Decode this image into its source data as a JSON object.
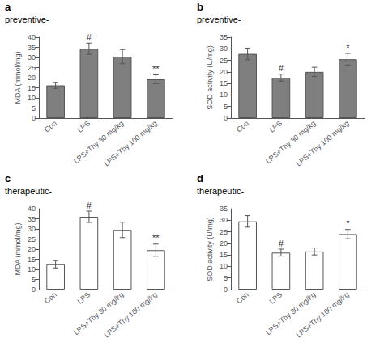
{
  "chart_data": [
    {
      "type": "bar",
      "title": "a",
      "subtitle": "preventive-",
      "ylabel": "MDA (mmol/mg)",
      "categories": [
        "Con",
        "LPS",
        "LPS+Thy 30 mg/kg",
        "LPS+Thy 100 mg/kg"
      ],
      "values": [
        16.2,
        34.3,
        30.4,
        19.2
      ],
      "errors": [
        1.5,
        2.8,
        3.5,
        2.2
      ],
      "annotations": [
        null,
        "#",
        null,
        "**"
      ],
      "color": "#7f7f7f",
      "ylim": [
        0,
        40
      ],
      "yticks": [
        0,
        5,
        10,
        15,
        20,
        25,
        30,
        35,
        40
      ],
      "grid": false
    },
    {
      "type": "bar",
      "title": "b",
      "subtitle": "preventive-",
      "ylabel": "SOD activity (U/mg)",
      "categories": [
        "Con",
        "LPS",
        "LPS+Thy 30 mg/kg",
        "LPS+Thy 100 mg/kg"
      ],
      "values": [
        27.8,
        17.5,
        20.0,
        25.5
      ],
      "errors": [
        2.5,
        1.5,
        2.0,
        2.5
      ],
      "annotations": [
        null,
        "#",
        null,
        "*"
      ],
      "color": "#7f7f7f",
      "ylim": [
        0,
        35
      ],
      "yticks": [
        0,
        5,
        10,
        15,
        20,
        25,
        30,
        35
      ],
      "grid": false
    },
    {
      "type": "bar",
      "title": "c",
      "subtitle": "therapeutic-",
      "ylabel": "MDA (mmol/mg)",
      "categories": [
        "Con",
        "LPS",
        "LPS+Thy 30 mg/kg",
        "LPS+Thy 100 mg/kg"
      ],
      "values": [
        12.5,
        36.0,
        29.5,
        19.5
      ],
      "errors": [
        1.8,
        2.8,
        3.8,
        3.0
      ],
      "annotations": [
        null,
        "#",
        null,
        "**"
      ],
      "color": "#ffffff",
      "ylim": [
        0,
        40
      ],
      "yticks": [
        0,
        5,
        10,
        15,
        20,
        25,
        30,
        35,
        40
      ],
      "grid": false
    },
    {
      "type": "bar",
      "title": "d",
      "subtitle": "therapeutic-",
      "ylabel": "SOD activity (U/mg)",
      "categories": [
        "Con",
        "LPS",
        "LPS+Thy 30 mg/kg",
        "LPS+Thy 100 mg/kg"
      ],
      "values": [
        29.5,
        16.0,
        16.5,
        24.0
      ],
      "errors": [
        2.5,
        1.5,
        1.5,
        2.0
      ],
      "annotations": [
        null,
        "#",
        null,
        "*"
      ],
      "color": "#ffffff",
      "ylim": [
        0,
        35
      ],
      "yticks": [
        0,
        5,
        10,
        15,
        20,
        25,
        30,
        35
      ],
      "grid": false
    }
  ]
}
